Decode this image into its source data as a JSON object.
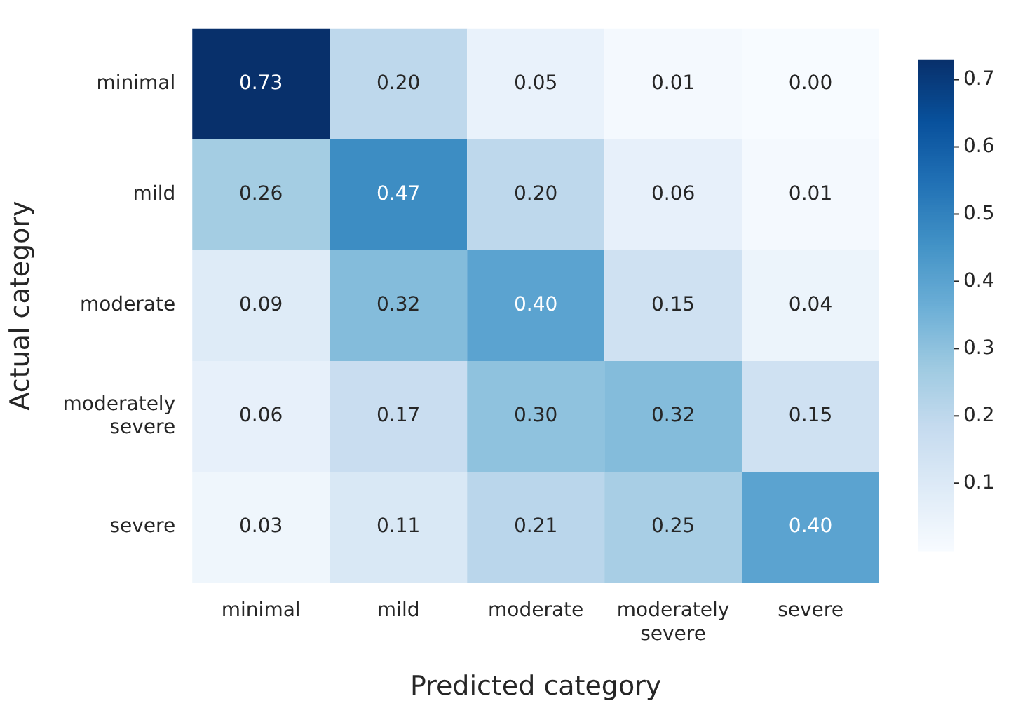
{
  "chart_data": {
    "type": "heatmap",
    "xlabel": "Predicted category",
    "ylabel": "Actual category",
    "categories": [
      "minimal",
      "mild",
      "moderate",
      "moderately severe",
      "severe"
    ],
    "y_categories": [
      "minimal",
      "mild",
      "moderate",
      "moderately severe",
      "severe"
    ],
    "cells": [
      [
        0.73,
        0.2,
        0.05,
        0.01,
        0.0
      ],
      [
        0.26,
        0.47,
        0.2,
        0.06,
        0.01
      ],
      [
        0.09,
        0.32,
        0.4,
        0.15,
        0.04
      ],
      [
        0.06,
        0.17,
        0.3,
        0.32,
        0.15
      ],
      [
        0.03,
        0.11,
        0.21,
        0.25,
        0.4
      ]
    ],
    "cell_labels": [
      [
        "0.73",
        "0.20",
        "0.05",
        "0.01",
        "0.00"
      ],
      [
        "0.26",
        "0.47",
        "0.20",
        "0.06",
        "0.01"
      ],
      [
        "0.09",
        "0.32",
        "0.40",
        "0.15",
        "0.04"
      ],
      [
        "0.06",
        "0.17",
        "0.30",
        "0.32",
        "0.15"
      ],
      [
        "0.03",
        "0.11",
        "0.21",
        "0.25",
        "0.40"
      ]
    ],
    "clim": [
      0,
      0.73
    ],
    "cticks": [
      0.1,
      0.2,
      0.3,
      0.4,
      0.5,
      0.6,
      0.7
    ],
    "data_labels": true
  }
}
